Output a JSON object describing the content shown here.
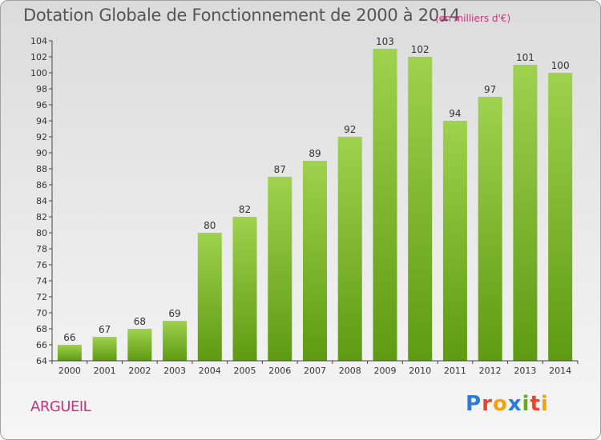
{
  "title": "Dotation Globale de Fonctionnement de 2000 à 2014",
  "subtitle": "(en milliers d'€)",
  "town": "ARGUEIL",
  "logo": {
    "letters": [
      "P",
      "r",
      "o",
      "x",
      "i",
      "t",
      "i"
    ],
    "colors": [
      "#2a7bd4",
      "#e8452c",
      "#f4a10c",
      "#2a7bd4",
      "#66aa22",
      "#e8452c",
      "#f4a10c"
    ]
  },
  "colors": {
    "bar_top": "#9fd24e",
    "bar_bottom": "#5e9a12",
    "title": "#555555",
    "accent": "#c8327a"
  },
  "chart_data": {
    "type": "bar",
    "categories": [
      "2000",
      "2001",
      "2002",
      "2003",
      "2004",
      "2005",
      "2006",
      "2007",
      "2008",
      "2009",
      "2010",
      "2011",
      "2012",
      "2013",
      "2014"
    ],
    "values": [
      66,
      67,
      68,
      69,
      80,
      82,
      87,
      89,
      92,
      103,
      102,
      94,
      97,
      101,
      100
    ],
    "ylim": [
      64,
      104
    ],
    "yticks": [
      "64",
      "66",
      "68",
      "70",
      "72",
      "74",
      "76",
      "78",
      "80",
      "82",
      "84",
      "86",
      "88",
      "90",
      "92",
      "94",
      "96",
      "98",
      "100",
      "102",
      "104"
    ],
    "grid": false,
    "legend": "none"
  }
}
